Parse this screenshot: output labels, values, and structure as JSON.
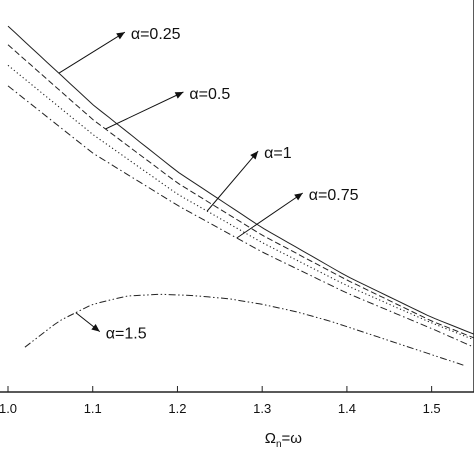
{
  "chart_data": {
    "type": "line",
    "xlabel": "Ω",
    "xlabel_sub": "n",
    "xlabel_suffix": "=ω",
    "ylabel": "",
    "xlim": [
      1.0,
      1.55
    ],
    "x_ticks": [
      "1.0",
      "1.1",
      "1.2",
      "1.3",
      "1.4",
      "1.5"
    ],
    "x_tick_values": [
      1.0,
      1.1,
      1.2,
      1.3,
      1.4,
      1.5
    ],
    "y_visible": false,
    "series": [
      {
        "name": "α=0.25",
        "style": "solid",
        "x": [
          1.0,
          1.1,
          1.2,
          1.3,
          1.4,
          1.5,
          1.55
        ],
        "y": [
          0.98,
          0.77,
          0.59,
          0.44,
          0.31,
          0.2,
          0.155
        ]
      },
      {
        "name": "α=0.5",
        "style": "dashed",
        "x": [
          1.0,
          1.1,
          1.2,
          1.3,
          1.4,
          1.5,
          1.55
        ],
        "y": [
          0.93,
          0.73,
          0.56,
          0.42,
          0.3,
          0.19,
          0.145
        ]
      },
      {
        "name": "α=1",
        "style": "dotted",
        "x": [
          1.0,
          1.1,
          1.2,
          1.3,
          1.4,
          1.5,
          1.55
        ],
        "y": [
          0.875,
          0.69,
          0.53,
          0.4,
          0.285,
          0.185,
          0.14
        ]
      },
      {
        "name": "α=0.75",
        "style": "dashdot",
        "x": [
          1.0,
          1.1,
          1.2,
          1.3,
          1.4,
          1.5,
          1.55
        ],
        "y": [
          0.82,
          0.64,
          0.5,
          0.375,
          0.265,
          0.17,
          0.12
        ]
      },
      {
        "name": "α=1.5",
        "style": "dashdotdot",
        "x": [
          1.02,
          1.06,
          1.1,
          1.14,
          1.18,
          1.22,
          1.26,
          1.3,
          1.34,
          1.38,
          1.42,
          1.46,
          1.5,
          1.54
        ],
        "y": [
          0.12,
          0.19,
          0.235,
          0.257,
          0.262,
          0.258,
          0.25,
          0.235,
          0.215,
          0.19,
          0.16,
          0.13,
          0.1,
          0.07
        ]
      }
    ],
    "annotations": [
      {
        "text": "α=0.25",
        "series": "α=0.25",
        "at_x": 1.06
      },
      {
        "text": "α=0.5",
        "series": "α=0.5",
        "at_x": 1.115
      },
      {
        "text": "α=1",
        "series": "α=1",
        "at_x": 1.235
      },
      {
        "text": "α=0.75",
        "series": "α=0.75",
        "at_x": 1.27
      },
      {
        "text": "α=1.5",
        "series": "α=1.5",
        "at_x": 1.08
      }
    ],
    "legend": "none",
    "grid": false
  }
}
